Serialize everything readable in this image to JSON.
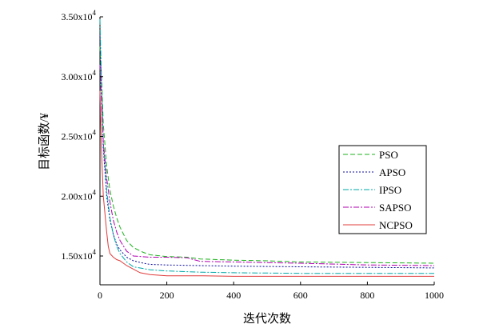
{
  "chart_data": {
    "type": "line",
    "title": "",
    "xlabel": "迭代次数",
    "ylabel": "目标函数/¥",
    "xlim": [
      0,
      1000
    ],
    "ylim": [
      13000,
      35000
    ],
    "x_ticks": [
      {
        "value": 0,
        "label": "0"
      },
      {
        "value": 200,
        "label": "200"
      },
      {
        "value": 400,
        "label": "400"
      },
      {
        "value": 600,
        "label": "600"
      },
      {
        "value": 800,
        "label": "800"
      },
      {
        "value": 1000,
        "label": "1000"
      }
    ],
    "y_ticks": [
      {
        "value": 15000,
        "mantissa": "1.50x10",
        "exp": "4"
      },
      {
        "value": 20000,
        "mantissa": "2.00x10",
        "exp": "4"
      },
      {
        "value": 25000,
        "mantissa": "2.50x10",
        "exp": "4"
      },
      {
        "value": 30000,
        "mantissa": "3.00x10",
        "exp": "4"
      },
      {
        "value": 35000,
        "mantissa": "3.50x10",
        "exp": "4"
      }
    ],
    "legend_position": "center-right",
    "series": [
      {
        "name": "PSO",
        "color": "#1db31d",
        "dash": "6,3",
        "x": [
          0,
          5,
          10,
          20,
          30,
          40,
          50,
          60,
          80,
          100,
          130,
          150,
          200,
          260,
          300,
          400,
          500,
          600,
          800,
          1000
        ],
        "y": [
          32500,
          29800,
          26000,
          22500,
          20500,
          19200,
          18200,
          17400,
          16300,
          15700,
          15300,
          15100,
          14950,
          14900,
          14750,
          14650,
          14600,
          14500,
          14450,
          14400
        ]
      },
      {
        "name": "APSO",
        "color": "#0b0b9a",
        "dash": "2,2",
        "x": [
          0,
          5,
          10,
          20,
          30,
          40,
          50,
          60,
          80,
          100,
          130,
          150,
          200,
          300,
          400,
          600,
          800,
          1000
        ],
        "y": [
          33500,
          28500,
          24000,
          20000,
          18000,
          16800,
          16000,
          15500,
          14900,
          14600,
          14400,
          14300,
          14250,
          14200,
          14150,
          14100,
          14050,
          14000
        ]
      },
      {
        "name": "IPSO",
        "color": "#00a8a8",
        "dash": "7,2,2,2",
        "x": [
          0,
          5,
          10,
          20,
          30,
          40,
          50,
          60,
          80,
          100,
          150,
          200,
          300,
          400,
          600,
          800,
          1000
        ],
        "y": [
          34800,
          29000,
          24500,
          20500,
          18200,
          16800,
          15800,
          15200,
          14500,
          14100,
          13850,
          13750,
          13650,
          13600,
          13550,
          13550,
          13550
        ]
      },
      {
        "name": "SAPSO",
        "color": "#b000b0",
        "dash": "7,2,2,2",
        "x": [
          0,
          5,
          10,
          20,
          30,
          40,
          50,
          60,
          80,
          100,
          150,
          200,
          260,
          300,
          400,
          600,
          800,
          1000
        ],
        "y": [
          31000,
          27500,
          24500,
          21500,
          19500,
          18000,
          17000,
          16300,
          15400,
          15000,
          14900,
          14900,
          14850,
          14550,
          14500,
          14400,
          14250,
          14200
        ]
      },
      {
        "name": "NCPSO",
        "color": "#e03c3c",
        "dash": "",
        "x": [
          0,
          5,
          10,
          20,
          25,
          30,
          40,
          50,
          60,
          80,
          100,
          120,
          150,
          200,
          300,
          400,
          600,
          800,
          1000
        ],
        "y": [
          28800,
          23500,
          20000,
          17000,
          15800,
          15200,
          14900,
          14700,
          14600,
          14200,
          13900,
          13600,
          13450,
          13350,
          13350,
          13300,
          13300,
          13300,
          13300
        ]
      }
    ]
  }
}
